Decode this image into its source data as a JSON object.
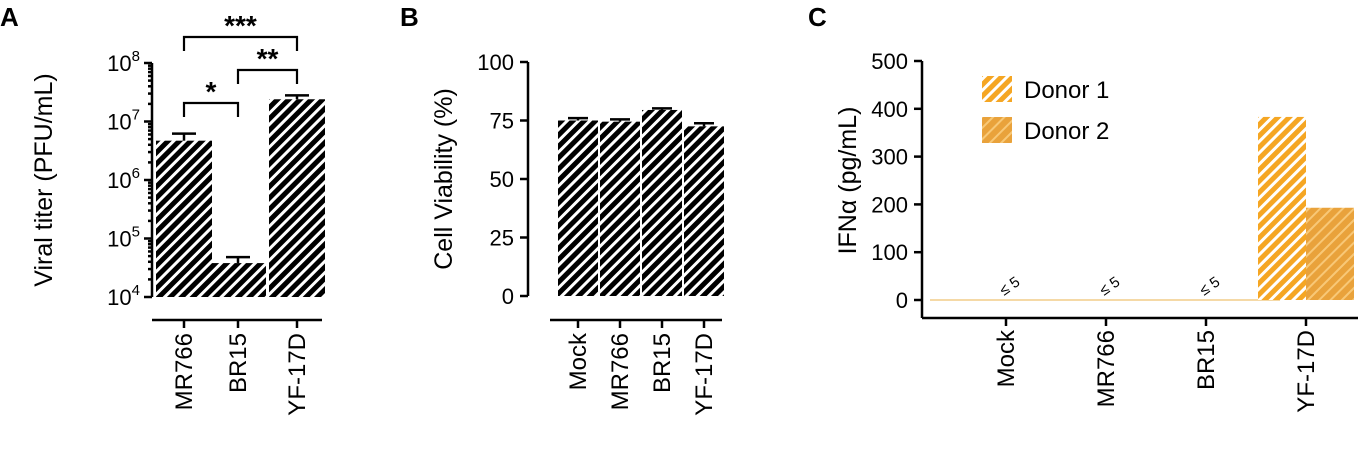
{
  "chart_data": [
    {
      "panel": "A",
      "type": "bar",
      "ylabel": "Viral titer (PFU/mL)",
      "yscale": "log",
      "ylim": [
        10000,
        100000000
      ],
      "yticks": [
        {
          "value": 10000,
          "base": "10",
          "exp": "4"
        },
        {
          "value": 100000,
          "base": "10",
          "exp": "5"
        },
        {
          "value": 1000000,
          "base": "10",
          "exp": "6"
        },
        {
          "value": 10000000,
          "base": "10",
          "exp": "7"
        },
        {
          "value": 100000000,
          "base": "10",
          "exp": "8"
        }
      ],
      "categories": [
        "MR766",
        "BR15",
        "YF-17D"
      ],
      "values": [
        4700000,
        38000,
        24000000
      ],
      "error": [
        6200000,
        48000,
        28000000
      ],
      "significance": [
        {
          "from": 0,
          "to": 1,
          "label": "*"
        },
        {
          "from": 1,
          "to": 2,
          "label": "**"
        },
        {
          "from": 0,
          "to": 2,
          "label": "***"
        }
      ]
    },
    {
      "panel": "B",
      "type": "bar",
      "ylabel": "Cell Viability (%)",
      "ylim": [
        0,
        100
      ],
      "yticks": [
        0,
        25,
        50,
        75,
        100
      ],
      "categories": [
        "Mock",
        "MR766",
        "BR15",
        "YF-17D"
      ],
      "values": [
        75,
        74.5,
        79.5,
        72.5
      ],
      "error": [
        76,
        75.5,
        80.2,
        73.8
      ]
    },
    {
      "panel": "C",
      "type": "bar",
      "ylabel": "IFNα (pg/mL)",
      "ylim": [
        0,
        500
      ],
      "yticks": [
        0,
        100,
        200,
        300,
        400,
        500
      ],
      "categories": [
        "Mock",
        "MR766",
        "BR15",
        "YF-17D"
      ],
      "series": [
        {
          "name": "Donor 1",
          "values": [
            0,
            0,
            0,
            383
          ],
          "color": "#F5A623"
        },
        {
          "name": "Donor 2",
          "values": [
            0,
            0,
            0,
            193
          ],
          "color": "#F5A623"
        }
      ],
      "annotations": [
        "≤ 5",
        "≤ 5",
        "≤ 5"
      ],
      "legend": "top-left"
    }
  ]
}
